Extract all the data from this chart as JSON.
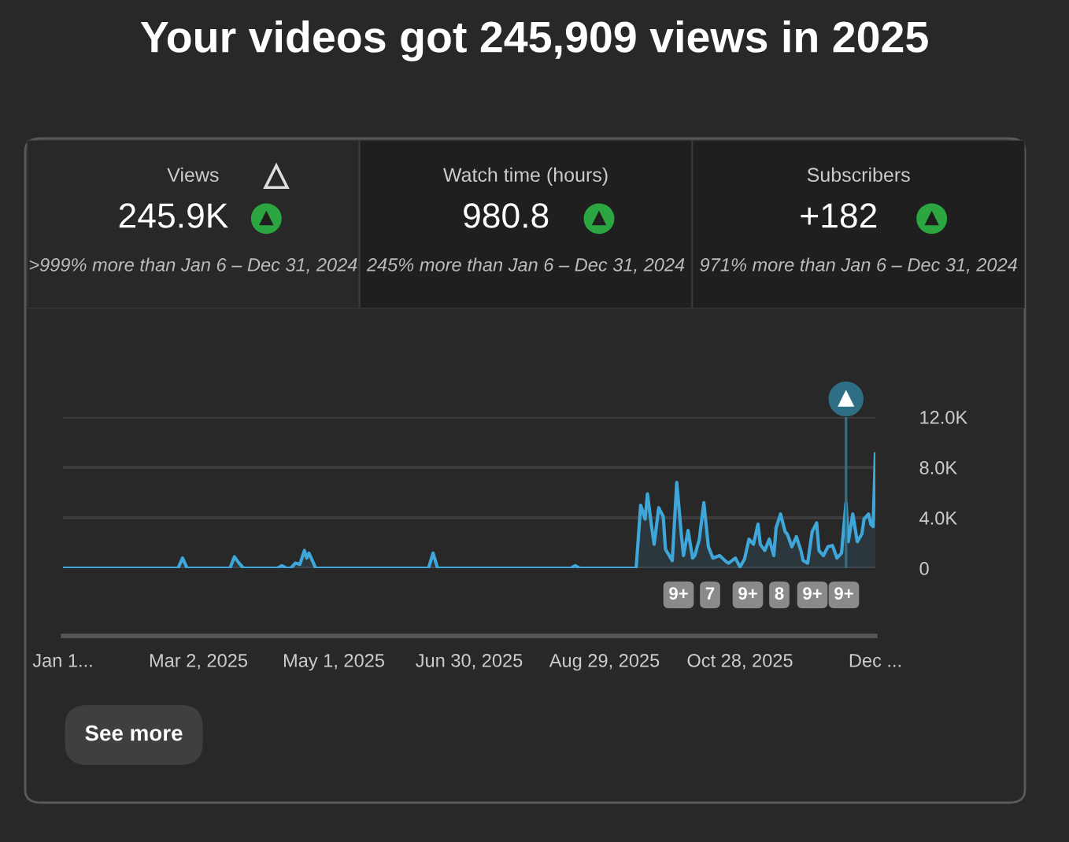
{
  "chart_data": [
    {
      "type": "other",
      "title": "Your videos got 245,909 views in 2025",
      "annotations": [
        "Views",
        "Watch time (hours)",
        "Subscribers",
        "245.9K",
        "980.8",
        "+182",
        ">999% more than Jan 6 – Dec 31, 2024",
        "245% more than Jan 6 – Dec 31, 2024",
        "971% more than Jan 6 – Dec 31, 2024"
      ]
    },
    {
      "type": "area",
      "x": [
        "2025-01-01",
        "2025-02-21",
        "2025-02-23",
        "2025-02-25",
        "2025-03-16",
        "2025-03-18",
        "2025-03-20",
        "2025-03-22",
        "2025-04-06",
        "2025-04-08",
        "2025-04-10",
        "2025-04-12",
        "2025-04-14",
        "2025-04-16",
        "2025-04-18",
        "2025-04-19",
        "2025-04-20",
        "2025-04-23",
        "2025-06-12",
        "2025-06-14",
        "2025-06-16",
        "2025-08-14",
        "2025-08-16",
        "2025-08-18",
        "2025-09-12",
        "2025-09-14",
        "2025-09-16",
        "2025-09-17",
        "2025-09-19",
        "2025-09-20",
        "2025-09-22",
        "2025-09-24",
        "2025-09-25",
        "2025-09-28",
        "2025-09-30",
        "2025-10-02",
        "2025-10-03",
        "2025-10-05",
        "2025-10-07",
        "2025-10-08",
        "2025-10-10",
        "2025-10-12",
        "2025-10-14",
        "2025-10-16",
        "2025-10-19",
        "2025-10-22",
        "2025-10-23",
        "2025-10-26",
        "2025-10-28",
        "2025-10-30",
        "2025-11-01",
        "2025-11-03",
        "2025-11-05",
        "2025-11-06",
        "2025-11-08",
        "2025-11-10",
        "2025-11-12",
        "2025-11-13",
        "2025-11-15",
        "2025-11-17",
        "2025-11-18",
        "2025-11-20",
        "2025-11-22",
        "2025-11-24",
        "2025-11-25",
        "2025-11-27",
        "2025-11-29",
        "2025-12-01",
        "2025-12-02",
        "2025-12-04",
        "2025-12-06",
        "2025-12-08",
        "2025-12-10",
        "2025-12-12",
        "2025-12-14",
        "2025-12-15",
        "2025-12-17",
        "2025-12-19",
        "2025-12-21",
        "2025-12-22",
        "2025-12-24",
        "2025-12-25",
        "2025-12-26",
        "2025-12-27"
      ],
      "series": [
        {
          "color": "#3ea6d8",
          "values": [
            0,
            0,
            800,
            0,
            0,
            900,
            400,
            0,
            0,
            200,
            0,
            0,
            400,
            300,
            1400,
            800,
            1200,
            0,
            0,
            1200,
            0,
            0,
            200,
            0,
            0,
            5000,
            3900,
            5900,
            3100,
            1900,
            4800,
            4100,
            1500,
            600,
            6800,
            2700,
            1000,
            3000,
            800,
            1000,
            2300,
            5200,
            1700,
            800,
            1000,
            500,
            400,
            800,
            100,
            700,
            2300,
            1900,
            3500,
            1900,
            1400,
            2300,
            1000,
            3200,
            4300,
            2900,
            2700,
            1700,
            2500,
            1400,
            600,
            400,
            2900,
            3600,
            1400,
            1000,
            1700,
            1800,
            800,
            1200,
            5200,
            2100,
            4300,
            2100,
            2700,
            3900,
            4300,
            3500,
            3300,
            9100
          ]
        }
      ],
      "xlim": [
        "2025-01-01",
        "2025-12-27"
      ],
      "xticks": [
        {
          "value": "2025-01-01",
          "label": "Jan 1..."
        },
        {
          "value": "2025-03-02",
          "label": "Mar 2, 2025"
        },
        {
          "value": "2025-05-01",
          "label": "May 1, 2025"
        },
        {
          "value": "2025-06-30",
          "label": "Jun 30, 2025"
        },
        {
          "value": "2025-08-29",
          "label": "Aug 29, 2025"
        },
        {
          "value": "2025-10-28",
          "label": "Oct 28, 2025"
        },
        {
          "value": "2025-12-27",
          "label": "Dec ..."
        }
      ],
      "ylim": [
        0,
        12000
      ],
      "yticks": [
        {
          "value": 0,
          "label": "0"
        },
        {
          "value": 4000,
          "label": "4.0K"
        },
        {
          "value": 8000,
          "label": "8.0K"
        },
        {
          "value": 12000,
          "label": "12.0K"
        }
      ],
      "grid": "y",
      "ref_lines": [
        {
          "axis": "x",
          "value": "2025-12-14",
          "color": "#2f6f86"
        }
      ],
      "annotations": [
        "9+",
        "7",
        "9+",
        "8",
        "9+",
        "9+",
        "See more"
      ]
    }
  ]
}
